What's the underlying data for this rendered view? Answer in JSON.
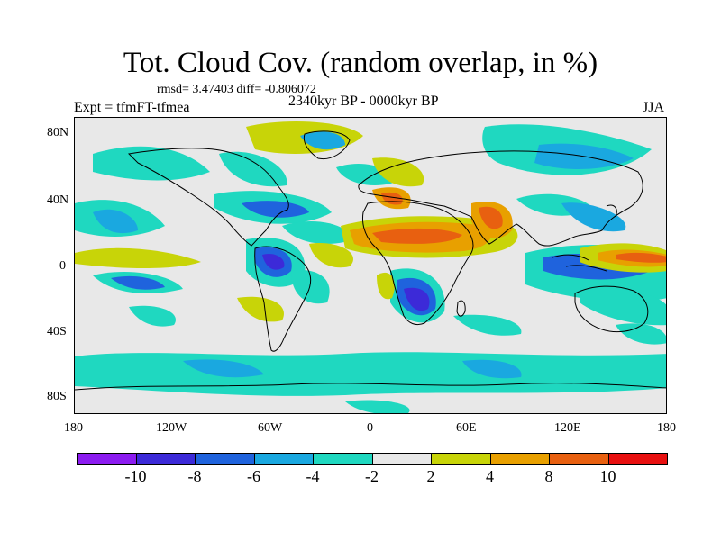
{
  "title": "Tot. Cloud Cov. (random overlap, in %)",
  "stats_line": "rmsd= 3.47403 diff= -0.806072",
  "experiment_label": "Expt = tfmFT-tfmea",
  "period_label": "2340kyr BP - 0000kyr BP",
  "season_label": "JJA",
  "lat_ticks": [
    "80N",
    "40N",
    "0",
    "40S",
    "80S"
  ],
  "lon_ticks": [
    "180",
    "120W",
    "60W",
    "0",
    "60E",
    "120E",
    "180"
  ],
  "colorbar": {
    "colors": [
      "#8c1cf0",
      "#3c2ad8",
      "#1f63dd",
      "#1aa8e0",
      "#1fd8c0",
      "#e8e8e8",
      "#c8d408",
      "#e8a000",
      "#e86010",
      "#e81010"
    ],
    "labels": [
      "-10",
      "-8",
      "-6",
      "-4",
      "-2",
      "2",
      "4",
      "8",
      "10"
    ]
  },
  "palette": {
    "neutral": "#e8e8e8",
    "neg_strong": "#3c2ad8",
    "neg_mid": "#1f63dd",
    "neg_light": "#1aa8e0",
    "neg_weak": "#1fd8c0",
    "pos_weak": "#c8d408",
    "pos_mid": "#e8a000",
    "pos_strong": "#e86010",
    "pos_max": "#e81010"
  }
}
